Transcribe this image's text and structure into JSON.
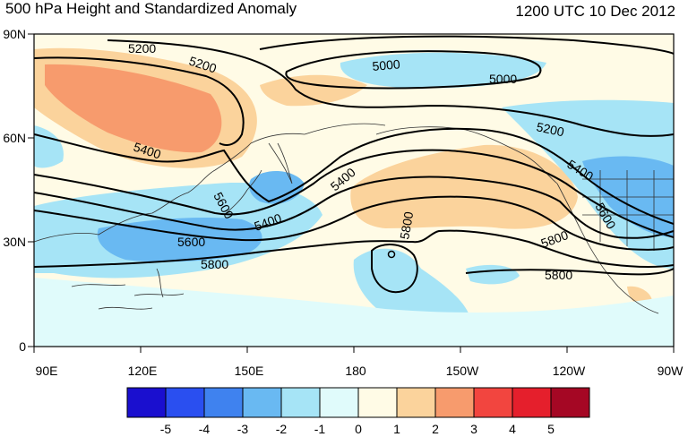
{
  "map": {
    "title_left": "500 hPa Height and Standardized Anomaly",
    "title_right": "1200 UTC 10 Dec 2012",
    "lat_labels": [
      "90N",
      "60N",
      "30N",
      "0"
    ],
    "lon_labels": [
      "90E",
      "120E",
      "150E",
      "180",
      "150W",
      "120W",
      "90W"
    ],
    "contour_labels": [
      "5200",
      "5200",
      "5000",
      "5000",
      "5200",
      "5400",
      "5400",
      "5400",
      "5400",
      "5600",
      "5800",
      "5600",
      "5800",
      "5800",
      "5600",
      "5800"
    ]
  },
  "colorbar": {
    "ticks": [
      "-5",
      "-4",
      "-3",
      "-2",
      "-1",
      "0",
      "1",
      "2",
      "3",
      "4",
      "5"
    ],
    "colors": [
      "#1a0fcf",
      "#2a4ff0",
      "#3f82ef",
      "#69b9f2",
      "#a6e4f6",
      "#e0fbfb",
      "#fffbe6",
      "#fbd39c",
      "#f79b6d",
      "#f2453f",
      "#e51f2c",
      "#a50724"
    ]
  }
}
